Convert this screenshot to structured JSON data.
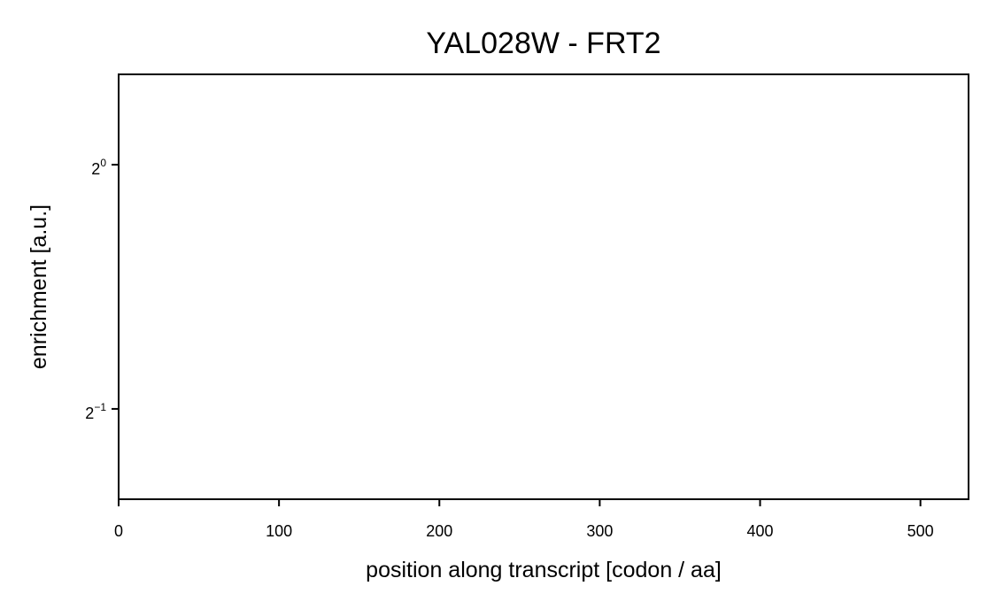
{
  "chart_data": {
    "type": "line",
    "title": "YAL028W - FRT2",
    "xlabel": "position along transcript [codon / aa]",
    "ylabel": "enrichment [a.u.]",
    "xlim": [
      0,
      530
    ],
    "ylim_log2": [
      -1.37,
      0.37
    ],
    "y_scale": "log2",
    "x_ticks": [
      {
        "value": 0,
        "label": "0"
      },
      {
        "value": 100,
        "label": "100"
      },
      {
        "value": 200,
        "label": "200"
      },
      {
        "value": 300,
        "label": "300"
      },
      {
        "value": 400,
        "label": "400"
      },
      {
        "value": 500,
        "label": "500"
      }
    ],
    "y_ticks": [
      {
        "exponent": 0,
        "base": "2",
        "sup": "0"
      },
      {
        "exponent": -1,
        "base": "2",
        "sup": "−1"
      }
    ],
    "series": [],
    "grid": false,
    "legend": "none"
  }
}
